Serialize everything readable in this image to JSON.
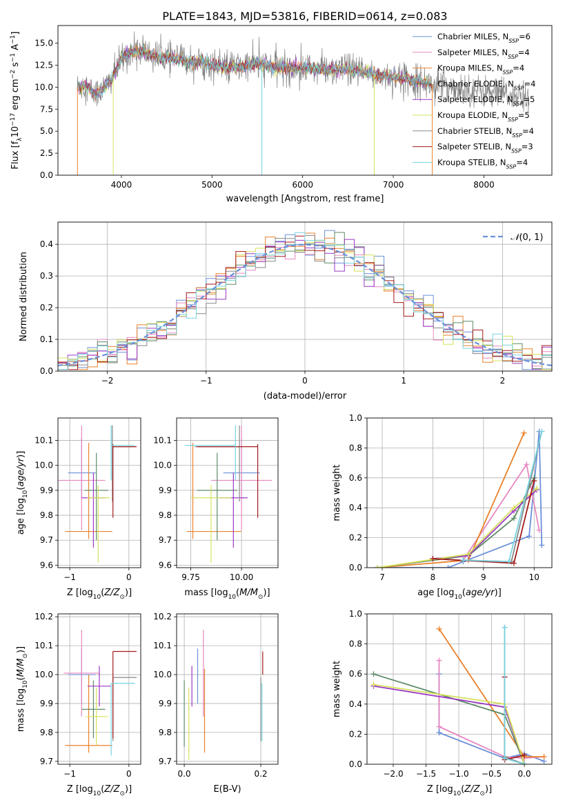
{
  "figure_title": "PLATE=1843, MJD=53816, FIBERID=0614, z=0.083",
  "colors": {
    "Chabrier MILES": "#6a8fd9",
    "Salpeter MILES": "#e787c1",
    "Kroupa MILES": "#e8812a",
    "Chabrier ELODIE": "#5c8a66",
    "Salpeter ELODIE": "#9b37c4",
    "Kroupa ELODIE": "#d6e25c",
    "Chabrier STELIB": "#888888",
    "Salpeter STELIB": "#a31a1a",
    "Kroupa STELIB": "#76d4e0"
  },
  "chart_data": [
    {
      "type": "line",
      "title": "PLATE=1843, MJD=53816, FIBERID=0614, z=0.083",
      "xlabel": "wavelength [Angstrom, rest frame]",
      "ylabel": "Flux [f_λ 10^-17 erg cm^-2 s^-1 A^-1]",
      "xlim": [
        3300,
        8750
      ],
      "ylim": [
        0,
        17
      ],
      "xticks": [
        "4000",
        "5000",
        "6000",
        "7000",
        "8000"
      ],
      "yticks": [
        "0.0",
        "2.5",
        "5.0",
        "7.5",
        "10.0",
        "12.5",
        "15.0"
      ],
      "grid": false,
      "legend_position": "top-right",
      "legend": [
        "Chabrier MILES, N_SSP=6",
        "Salpeter MILES, N_SSP=4",
        "Kroupa MILES, N_SSP=4",
        "Chabrier ELODIE, N_SSP=4",
        "Salpeter ELODIE, N_SSP=5",
        "Kroupa ELODIE, N_SSP=5",
        "Chabrier STELIB, N_SSP=4",
        "Salpeter STELIB, N_SSP=3",
        "Kroupa STELIB, N_SSP=4"
      ],
      "continuum": {
        "x": [
          3520,
          3600,
          3700,
          3800,
          3900,
          4000,
          4100,
          4200,
          4300,
          4400,
          4500,
          4700,
          4900,
          5100,
          5300,
          5500,
          5700,
          5900,
          6100,
          6300,
          6500,
          6700,
          6900,
          7100,
          7300,
          7400
        ],
        "y": [
          10.0,
          10.3,
          9.2,
          9.8,
          11.0,
          13.2,
          14.0,
          14.1,
          13.8,
          13.4,
          13.4,
          13.0,
          12.8,
          12.3,
          12.3,
          12.6,
          12.3,
          12.1,
          12.2,
          11.9,
          12.0,
          11.6,
          11.3,
          11.0,
          10.7,
          10.4
        ]
      },
      "data_extension": {
        "x_end": 8500,
        "y_end": 8.7
      }
    },
    {
      "type": "line",
      "xlabel": "(data-model)/error",
      "ylabel": "Normed distribution",
      "xlim": [
        -2.5,
        2.5
      ],
      "ylim": [
        0,
        0.47
      ],
      "xticks": [
        "−2",
        "−1",
        "0",
        "1",
        "2"
      ],
      "yticks": [
        "0.0",
        "0.1",
        "0.2",
        "0.3",
        "0.4"
      ],
      "grid": true,
      "legend_position": "top-right",
      "legend": [
        "𝒩(0,1)"
      ],
      "reference_curve": "standard normal density"
    },
    {
      "type": "scatter",
      "xlabel": "Z [log10(Z/Z⊙)]",
      "ylabel": "age [log10(age/yr)]",
      "xlim": [
        -1.2,
        0.2
      ],
      "ylim": [
        9.59,
        10.19
      ],
      "xticks": [
        "−1",
        "0"
      ],
      "yticks": [
        "9.6",
        "9.7",
        "9.8",
        "9.9",
        "10.0",
        "10.1"
      ],
      "grid": true,
      "points": [
        {
          "model": "Chabrier MILES",
          "x": -0.8,
          "xerr": [
            0.23,
            0.24
          ],
          "y": 9.97,
          "yerr": [
            0.1,
            0.14
          ]
        },
        {
          "model": "Salpeter MILES",
          "x": -0.8,
          "xerr": [
            0.4,
            0.4
          ],
          "y": 9.94,
          "yerr": [
            0.2,
            0.22
          ]
        },
        {
          "model": "Kroupa MILES",
          "x": -0.68,
          "xerr": [
            0.4,
            0.4
          ],
          "y": 9.735,
          "yerr": [
            0.03,
            0.355
          ]
        },
        {
          "model": "Chabrier ELODIE",
          "x": -0.55,
          "xerr": [
            0.2,
            0.2
          ],
          "y": 9.9,
          "yerr": [
            0.2,
            0.15
          ]
        },
        {
          "model": "Salpeter ELODIE",
          "x": -0.6,
          "xerr": [
            0.2,
            0.2
          ],
          "y": 9.87,
          "yerr": [
            0.2,
            0.1
          ]
        },
        {
          "model": "Kroupa ELODIE",
          "x": -0.52,
          "xerr": [
            0.18,
            0.2
          ],
          "y": 9.87,
          "yerr": [
            0.26,
            0.05
          ]
        },
        {
          "model": "Chabrier STELIB",
          "x": -0.28,
          "xerr": [
            0,
            0.4
          ],
          "y": 10.075,
          "yerr": [
            0.22,
            0.085
          ]
        },
        {
          "model": "Salpeter STELIB",
          "x": -0.27,
          "xerr": [
            0,
            0.4
          ],
          "y": 10.075,
          "yerr": [
            0.285,
            0.01
          ]
        },
        {
          "model": "Kroupa STELIB",
          "x": -0.3,
          "xerr": [
            0,
            0.4
          ],
          "y": 10.08,
          "yerr": [
            0.14,
            0.08
          ]
        }
      ]
    },
    {
      "type": "scatter",
      "xlabel": "mass [log10(M/M⊙)]",
      "ylabel": "",
      "xlim": [
        9.68,
        10.18
      ],
      "ylim": [
        9.59,
        10.19
      ],
      "xticks": [
        "9.75",
        "10.00"
      ],
      "yticks": [
        "9.6",
        "9.7",
        "9.8",
        "9.9",
        "10.0",
        "10.1"
      ],
      "grid": true,
      "points": [
        {
          "model": "Chabrier MILES",
          "x": 10.0,
          "xerr": [
            0.09,
            0.09
          ],
          "y": 9.97,
          "yerr": [
            0.1,
            0.14
          ]
        },
        {
          "model": "Salpeter MILES",
          "x": 10.0,
          "xerr": [
            0.15,
            0.15
          ],
          "y": 9.94,
          "yerr": [
            0.2,
            0.22
          ]
        },
        {
          "model": "Kroupa MILES",
          "x": 9.76,
          "xerr": [
            0.03,
            0.24
          ],
          "y": 9.735,
          "yerr": [
            0.03,
            0.355
          ]
        },
        {
          "model": "Chabrier ELODIE",
          "x": 9.88,
          "xerr": [
            0.1,
            0.1
          ],
          "y": 9.9,
          "yerr": [
            0.2,
            0.15
          ]
        },
        {
          "model": "Salpeter ELODIE",
          "x": 9.96,
          "xerr": [
            0.07,
            0.07
          ],
          "y": 9.87,
          "yerr": [
            0.2,
            0.1
          ]
        },
        {
          "model": "Kroupa ELODIE",
          "x": 9.85,
          "xerr": [
            0.1,
            0.1
          ],
          "y": 9.87,
          "yerr": [
            0.26,
            0.05
          ]
        },
        {
          "model": "Chabrier STELIB",
          "x": 9.99,
          "xerr": [
            0.22,
            0.0
          ],
          "y": 10.075,
          "yerr": [
            0.22,
            0.085
          ]
        },
        {
          "model": "Salpeter STELIB",
          "x": 10.08,
          "xerr": [
            0.3,
            0.0
          ],
          "y": 10.075,
          "yerr": [
            0.285,
            0.01
          ]
        },
        {
          "model": "Kroupa STELIB",
          "x": 9.97,
          "xerr": [
            0.25,
            0.0
          ],
          "y": 10.08,
          "yerr": [
            0.14,
            0.08
          ]
        }
      ]
    },
    {
      "type": "line",
      "xlabel": "age [log10(age/yr)]",
      "ylabel": "mass weight",
      "xlim": [
        6.7,
        10.35
      ],
      "ylim": [
        0,
        1.0
      ],
      "xticks": [
        "7",
        "8",
        "9",
        "10"
      ],
      "yticks": [
        "0.0",
        "0.2",
        "0.4",
        "0.6",
        "0.8",
        "1.0"
      ],
      "grid": true,
      "series": [
        {
          "model": "Chabrier MILES",
          "x": [
            6.9,
            8.3,
            8.6,
            9.9,
            10.1,
            10.15
          ],
          "y": [
            0.0,
            0.0,
            0.04,
            0.21,
            0.91,
            0.15
          ]
        },
        {
          "model": "Salpeter MILES",
          "x": [
            8.6,
            9.85,
            10.1
          ],
          "y": [
            0.05,
            0.69,
            0.25
          ]
        },
        {
          "model": "Kroupa MILES",
          "x": [
            6.9,
            8.7,
            9.8
          ],
          "y": [
            0.0,
            0.05,
            0.9
          ]
        },
        {
          "model": "Chabrier ELODIE",
          "x": [
            6.9,
            8.7,
            9.6,
            10.0
          ],
          "y": [
            0.0,
            0.08,
            0.33,
            0.6
          ]
        },
        {
          "model": "Salpeter ELODIE",
          "x": [
            8.0,
            8.7,
            9.6,
            10.05
          ],
          "y": [
            0.06,
            0.08,
            0.38,
            0.52
          ]
        },
        {
          "model": "Kroupa ELODIE",
          "x": [
            6.9,
            8.7,
            9.6,
            10.05
          ],
          "y": [
            0.0,
            0.09,
            0.4,
            0.53
          ]
        },
        {
          "model": "Chabrier STELIB",
          "x": [
            8.6,
            9.55,
            10.15
          ],
          "y": [
            0.05,
            0.04,
            0.91
          ]
        },
        {
          "model": "Salpeter STELIB",
          "x": [
            8.0,
            9.6,
            10.0
          ],
          "y": [
            0.06,
            0.03,
            0.58
          ]
        },
        {
          "model": "Kroupa STELIB",
          "x": [
            8.6,
            9.5,
            10.15
          ],
          "y": [
            0.05,
            0.04,
            0.91
          ]
        }
      ]
    },
    {
      "type": "scatter",
      "xlabel": "Z [log10(Z/Z⊙)]",
      "ylabel": "mass [log10(M/M⊙)]",
      "xlim": [
        -1.2,
        0.2
      ],
      "ylim": [
        9.69,
        10.21
      ],
      "xticks": [
        "−1",
        "0"
      ],
      "yticks": [
        "9.7",
        "9.8",
        "9.9",
        "10.0",
        "10.1",
        "10.2"
      ],
      "grid": true,
      "points": [
        {
          "model": "Chabrier MILES",
          "x": -0.8,
          "xerr": [
            0.23,
            0.24
          ],
          "y": 10.0,
          "yerr": [
            0.1,
            0.09
          ]
        },
        {
          "model": "Salpeter MILES",
          "x": -0.8,
          "xerr": [
            0.3,
            0.3
          ],
          "y": 10.005,
          "yerr": [
            0.15,
            0.15
          ]
        },
        {
          "model": "Kroupa MILES",
          "x": -0.68,
          "xerr": [
            0.4,
            0.4
          ],
          "y": 9.755,
          "yerr": [
            0.025,
            0.245
          ]
        },
        {
          "model": "Chabrier ELODIE",
          "x": -0.6,
          "xerr": [
            0.2,
            0.2
          ],
          "y": 9.88,
          "yerr": [
            0.1,
            0.1
          ]
        },
        {
          "model": "Salpeter ELODIE",
          "x": -0.5,
          "xerr": [
            0.2,
            0.2
          ],
          "y": 9.96,
          "yerr": [
            0.07,
            0.07
          ]
        },
        {
          "model": "Kroupa ELODIE",
          "x": -0.55,
          "xerr": [
            0.18,
            0.2
          ],
          "y": 9.855,
          "yerr": [
            0.1,
            0.1
          ]
        },
        {
          "model": "Chabrier STELIB",
          "x": -0.27,
          "xerr": [
            0,
            0.4
          ],
          "y": 9.99,
          "yerr": [
            0.22,
            0.0
          ]
        },
        {
          "model": "Salpeter STELIB",
          "x": -0.27,
          "xerr": [
            0,
            0.4
          ],
          "y": 10.08,
          "yerr": [
            0.3,
            0.0
          ]
        },
        {
          "model": "Kroupa STELIB",
          "x": -0.3,
          "xerr": [
            0,
            0.4
          ],
          "y": 9.97,
          "yerr": [
            0.25,
            0.0
          ]
        }
      ]
    },
    {
      "type": "scatter",
      "xlabel": "E(B-V)",
      "ylabel": "",
      "xlim": [
        -0.02,
        0.245
      ],
      "ylim": [
        9.69,
        10.21
      ],
      "xticks": [
        "0.0",
        "0.2"
      ],
      "yticks": [
        "9.7",
        "9.8",
        "9.9",
        "10.0",
        "10.1",
        "10.2"
      ],
      "grid": true,
      "points": [
        {
          "model": "Chabrier MILES",
          "x": 0.035,
          "y": 10.0,
          "yerr": [
            0.1,
            0.09
          ]
        },
        {
          "model": "Salpeter MILES",
          "x": 0.05,
          "y": 10.005,
          "yerr": [
            0.15,
            0.15
          ]
        },
        {
          "model": "Kroupa MILES",
          "x": 0.053,
          "y": 9.96,
          "yerr": [
            0.23,
            0.06
          ]
        },
        {
          "model": "Chabrier ELODIE",
          "x": 0.0,
          "y": 9.88,
          "yerr": [
            0.13,
            0.1
          ]
        },
        {
          "model": "Salpeter ELODIE",
          "x": 0.02,
          "y": 9.96,
          "yerr": [
            0.07,
            0.07
          ]
        },
        {
          "model": "Kroupa ELODIE",
          "x": 0.012,
          "y": 9.855,
          "yerr": [
            0.15,
            0.1
          ]
        },
        {
          "model": "Chabrier STELIB",
          "x": 0.2,
          "y": 9.99,
          "yerr": [
            0.22,
            0.0
          ]
        },
        {
          "model": "Salpeter STELIB",
          "x": 0.205,
          "y": 10.0,
          "yerr": [
            0.0,
            0.08
          ]
        },
        {
          "model": "Kroupa STELIB",
          "x": 0.203,
          "y": 9.97,
          "yerr": [
            0.2,
            0.0
          ]
        }
      ]
    },
    {
      "type": "line",
      "xlabel": "Z [log10(Z/Z⊙)]",
      "ylabel": "mass weight",
      "xlim": [
        -2.4,
        0.42
      ],
      "ylim": [
        0,
        1.0
      ],
      "xticks": [
        "−2.0",
        "−1.5",
        "−1.0",
        "−0.5",
        "0.0"
      ],
      "yticks": [
        "0.0",
        "0.2",
        "0.4",
        "0.6",
        "0.8",
        "1.0"
      ],
      "grid": true,
      "series": [
        {
          "model": "Chabrier MILES",
          "x": [
            -1.3,
            -1.3,
            -0.3,
            0.0,
            0.3
          ],
          "y": [
            0.6,
            0.21,
            0.04,
            0.07,
            0.02
          ]
        },
        {
          "model": "Salpeter MILES",
          "x": [
            -1.3,
            -1.3,
            -0.3,
            0.0,
            0.3
          ],
          "y": [
            0.69,
            0.25,
            0.05,
            0.04,
            0.05
          ]
        },
        {
          "model": "Kroupa MILES",
          "x": [
            -1.3,
            0.0,
            0.3
          ],
          "y": [
            0.9,
            0.05,
            0.05
          ]
        },
        {
          "model": "Chabrier ELODIE",
          "x": [
            -2.3,
            -0.3,
            0.0
          ],
          "y": [
            0.6,
            0.33,
            0.0
          ]
        },
        {
          "model": "Salpeter ELODIE",
          "x": [
            -2.3,
            -0.3,
            0.0
          ],
          "y": [
            0.52,
            0.38,
            0.0
          ]
        },
        {
          "model": "Kroupa ELODIE",
          "x": [
            -2.3,
            -0.3,
            0.0
          ],
          "y": [
            0.53,
            0.4,
            0.0
          ]
        },
        {
          "model": "Chabrier STELIB",
          "x": [
            -0.3,
            -0.3,
            0.0
          ],
          "y": [
            0.91,
            0.05,
            0.0
          ]
        },
        {
          "model": "Salpeter STELIB",
          "x": [
            -0.3,
            -0.3,
            0.0
          ],
          "y": [
            0.58,
            0.03,
            0.06
          ]
        },
        {
          "model": "Kroupa STELIB",
          "x": [
            -0.3,
            -0.3,
            0.0
          ],
          "y": [
            0.91,
            0.04,
            0.0
          ]
        }
      ]
    }
  ]
}
